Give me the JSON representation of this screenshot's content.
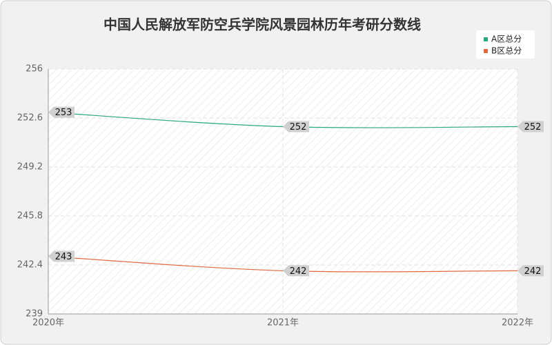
{
  "chart_data": {
    "type": "line",
    "title": "中国人民解放军防空兵学院风景园林历年考研分数线",
    "categories": [
      "2020年",
      "2021年",
      "2022年"
    ],
    "series": [
      {
        "name": "A区总分",
        "color": "#2aa683",
        "values": [
          253,
          252,
          252
        ]
      },
      {
        "name": "B区总分",
        "color": "#e0693f",
        "values": [
          243,
          242,
          242
        ]
      }
    ],
    "ylim": [
      239,
      256
    ],
    "yticks": [
      239,
      242.4,
      245.8,
      249.2,
      252.6,
      256
    ],
    "grid": true,
    "legend": "top-right"
  }
}
